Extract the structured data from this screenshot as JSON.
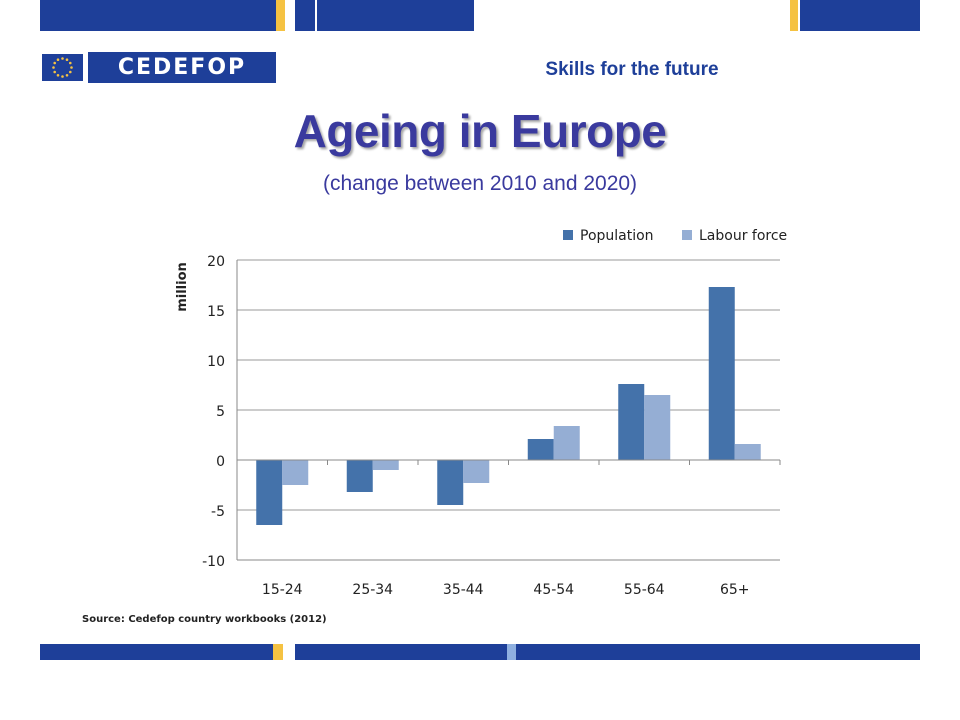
{
  "header": {
    "logo_text": "CEDEFOP",
    "tagline": "Skills for the future"
  },
  "title": "Ageing in Europe",
  "subtitle": "(change between 2010 and 2020)",
  "source": "Source: Cedefop country workbooks (2012)",
  "colors": {
    "brand_blue": "#1e3f99",
    "brand_yellow": "#f5c242",
    "light_blue": "#8fb0e0",
    "title": "#3a3a9e",
    "population": "#4472aa",
    "labour_force": "#95aed4"
  },
  "chart_data": {
    "type": "bar",
    "categories": [
      "15-24",
      "25-34",
      "35-44",
      "45-54",
      "55-64",
      "65+"
    ],
    "series": [
      {
        "name": "Population",
        "values": [
          -6.5,
          -3.2,
          -4.5,
          2.1,
          7.6,
          17.3
        ]
      },
      {
        "name": "Labour force",
        "values": [
          -2.5,
          -1.0,
          -2.3,
          3.4,
          6.5,
          1.6
        ]
      }
    ],
    "ylabel": "million",
    "ylim": [
      -10,
      20
    ],
    "yticks": [
      -10,
      -5,
      0,
      5,
      10,
      15,
      20
    ],
    "grid": true,
    "legend": "top-right"
  }
}
